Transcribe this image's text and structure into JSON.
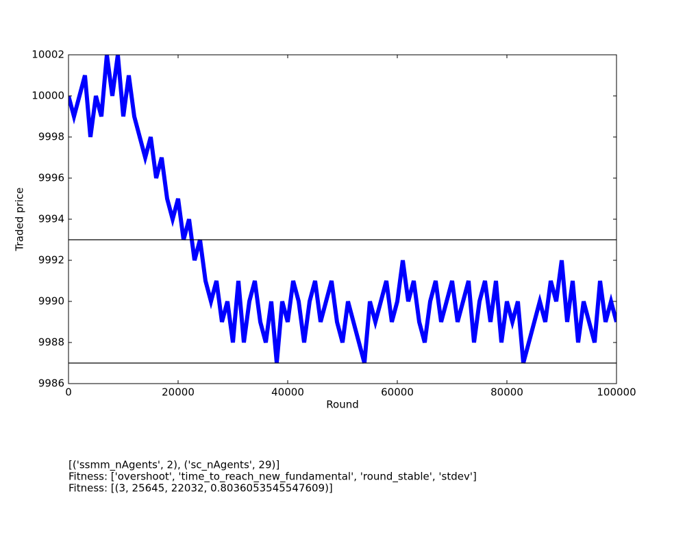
{
  "chart_data": {
    "type": "line",
    "xlabel": "Round",
    "ylabel": "Traded price",
    "x": [
      0,
      1000,
      2000,
      3000,
      4000,
      5000,
      6000,
      7000,
      8000,
      9000,
      10000,
      11000,
      12000,
      13000,
      14000,
      15000,
      16000,
      17000,
      18000,
      19000,
      20000,
      21000,
      22000,
      23000,
      24000,
      25000,
      26000,
      27000,
      28000,
      29000,
      30000,
      31000,
      32000,
      33000,
      34000,
      35000,
      36000,
      37000,
      38000,
      39000,
      40000,
      41000,
      42000,
      43000,
      44000,
      45000,
      46000,
      47000,
      48000,
      49000,
      50000,
      51000,
      52000,
      53000,
      54000,
      55000,
      56000,
      57000,
      58000,
      59000,
      60000,
      61000,
      62000,
      63000,
      64000,
      65000,
      66000,
      67000,
      68000,
      69000,
      70000,
      71000,
      72000,
      73000,
      74000,
      75000,
      76000,
      77000,
      78000,
      79000,
      80000,
      81000,
      82000,
      83000,
      84000,
      85000,
      86000,
      87000,
      88000,
      89000,
      90000,
      91000,
      92000,
      93000,
      94000,
      95000,
      96000,
      97000,
      98000,
      99000,
      100000
    ],
    "series": [
      {
        "color": "#0000ff",
        "values": [
          10000,
          9999,
          10000,
          10001,
          9998,
          10000,
          9999,
          10002,
          10000,
          10002,
          9999,
          10001,
          9999,
          9998,
          9997,
          9998,
          9996,
          9997,
          9995,
          9994,
          9995,
          9993,
          9994,
          9992,
          9993,
          9991,
          9990,
          9991,
          9989,
          9990,
          9988,
          9991,
          9988,
          9990,
          9991,
          9989,
          9988,
          9990,
          9987,
          9990,
          9989,
          9991,
          9990,
          9988,
          9990,
          9991,
          9989,
          9990,
          9991,
          9989,
          9988,
          9990,
          9989,
          9988,
          9987,
          9990,
          9989,
          9990,
          9991,
          9989,
          9990,
          9992,
          9990,
          9991,
          9989,
          9988,
          9990,
          9991,
          9989,
          9990,
          9991,
          9989,
          9990,
          9991,
          9988,
          9990,
          9991,
          9989,
          9991,
          9988,
          9990,
          9989,
          9990,
          9987,
          9988,
          9989,
          9990,
          9989,
          9991,
          9990,
          9992,
          9989,
          9991,
          9988,
          9990,
          9989,
          9988,
          9991,
          9989,
          9990,
          9989
        ]
      }
    ],
    "hlines": [
      9993,
      9987
    ],
    "xlim": [
      0,
      100000
    ],
    "xticks": [
      0,
      20000,
      40000,
      60000,
      80000,
      100000
    ],
    "ylim": [
      9986,
      10002
    ],
    "yticks": [
      9986,
      9988,
      9990,
      9992,
      9994,
      9996,
      9998,
      10000,
      10002
    ],
    "notes": [
      "[('ssmm_nAgents', 2), ('sc_nAgents', 29)]",
      "Fitness: ['overshoot', 'time_to_reach_new_fundamental', 'round_stable', 'stdev']",
      "Fitness: [(3, 25645, 22032, 0.8036053545547609)]"
    ]
  }
}
